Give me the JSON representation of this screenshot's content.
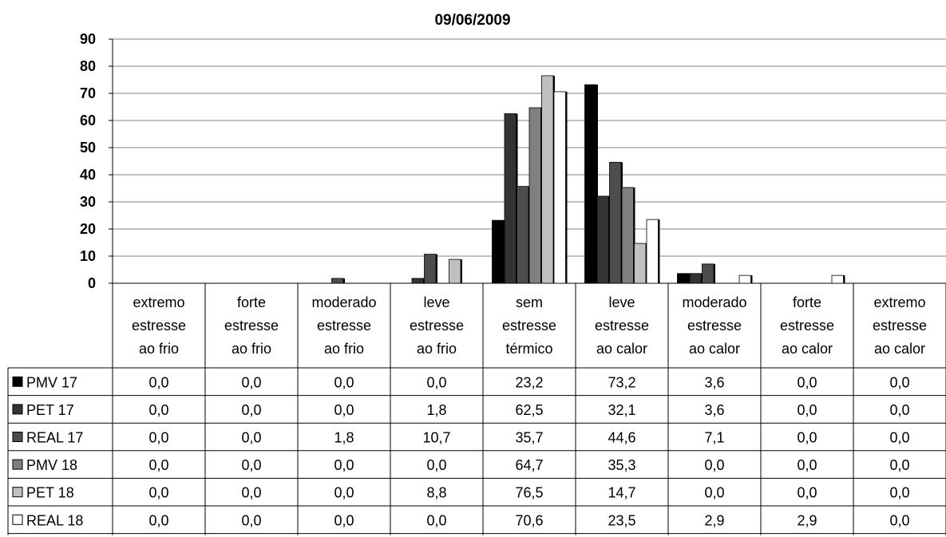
{
  "chart_data": {
    "type": "bar",
    "title": "09/06/2009",
    "ylim": [
      0,
      90
    ],
    "yticks": [
      "0",
      "10",
      "20",
      "30",
      "40",
      "50",
      "60",
      "70",
      "80",
      "90"
    ],
    "grid": true,
    "legend": "data table with legend keys below the chart",
    "categories": [
      [
        "extremo",
        "estresse",
        "ao frio"
      ],
      [
        "forte",
        "estresse",
        "ao frio"
      ],
      [
        "moderado",
        "estresse",
        "ao frio"
      ],
      [
        "leve",
        "estresse",
        "ao frio"
      ],
      [
        "sem",
        "estresse",
        "térmico"
      ],
      [
        "leve",
        "estresse",
        "ao calor"
      ],
      [
        "moderado",
        "estresse",
        "ao calor"
      ],
      [
        "forte",
        "estresse",
        "ao calor"
      ],
      [
        "extremo",
        "estresse",
        "ao calor"
      ]
    ],
    "series": [
      {
        "name": "PMV 17",
        "color": "#000000",
        "values": [
          0.0,
          0.0,
          0.0,
          0.0,
          23.2,
          73.2,
          3.6,
          0.0,
          0.0
        ],
        "labels": [
          "0,0",
          "0,0",
          "0,0",
          "0,0",
          "23,2",
          "73,2",
          "3,6",
          "0,0",
          "0,0"
        ]
      },
      {
        "name": "PET 17",
        "color": "#333333",
        "values": [
          0.0,
          0.0,
          0.0,
          1.8,
          62.5,
          32.1,
          3.6,
          0.0,
          0.0
        ],
        "labels": [
          "0,0",
          "0,0",
          "0,0",
          "1,8",
          "62,5",
          "32,1",
          "3,6",
          "0,0",
          "0,0"
        ]
      },
      {
        "name": "REAL 17",
        "color": "#4d4d4d",
        "values": [
          0.0,
          0.0,
          1.8,
          10.7,
          35.7,
          44.6,
          7.1,
          0.0,
          0.0
        ],
        "labels": [
          "0,0",
          "0,0",
          "1,8",
          "10,7",
          "35,7",
          "44,6",
          "7,1",
          "0,0",
          "0,0"
        ]
      },
      {
        "name": "PMV 18",
        "color": "#808080",
        "values": [
          0.0,
          0.0,
          0.0,
          0.0,
          64.7,
          35.3,
          0.0,
          0.0,
          0.0
        ],
        "labels": [
          "0,0",
          "0,0",
          "0,0",
          "0,0",
          "64,7",
          "35,3",
          "0,0",
          "0,0",
          "0,0"
        ]
      },
      {
        "name": "PET 18",
        "color": "#c0c0c0",
        "values": [
          0.0,
          0.0,
          0.0,
          8.8,
          76.5,
          14.7,
          0.0,
          0.0,
          0.0
        ],
        "labels": [
          "0,0",
          "0,0",
          "0,0",
          "8,8",
          "76,5",
          "14,7",
          "0,0",
          "0,0",
          "0,0"
        ]
      },
      {
        "name": "REAL 18",
        "color": "#ffffff",
        "values": [
          0.0,
          0.0,
          0.0,
          0.0,
          70.6,
          23.5,
          2.9,
          2.9,
          0.0
        ],
        "labels": [
          "0,0",
          "0,0",
          "0,0",
          "0,0",
          "70,6",
          "23,5",
          "2,9",
          "2,9",
          "0,0"
        ]
      }
    ]
  }
}
